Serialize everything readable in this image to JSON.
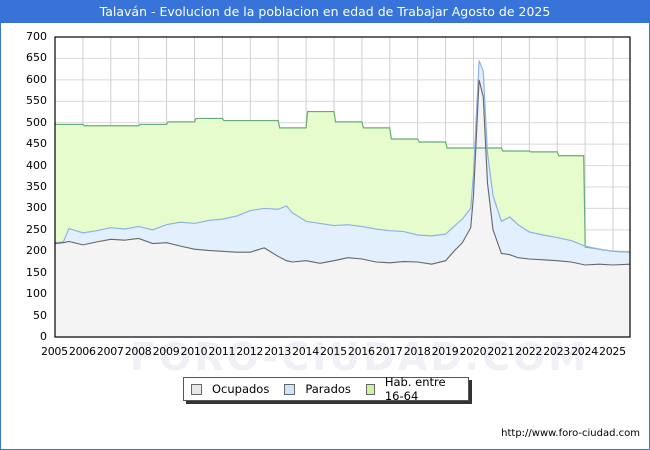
{
  "title": "Talaván - Evolucion de la poblacion en edad de Trabajar Agosto de 2025",
  "footer": "http://www.foro-ciudad.com",
  "watermark": "FORO-CIUDAD.COM",
  "legend": [
    {
      "label": "Ocupados",
      "color": "#e8e8e8"
    },
    {
      "label": "Parados",
      "color": "#cfe3fb"
    },
    {
      "label": "Hab. entre 16-64",
      "color": "#ccf5a0"
    }
  ],
  "y_ticks": [
    "700",
    "650",
    "600",
    "550",
    "500",
    "450",
    "400",
    "350",
    "300",
    "250",
    "200",
    "150",
    "100",
    "50",
    "0"
  ],
  "x_ticks": [
    "2005",
    "2006",
    "2007",
    "2008",
    "2009",
    "2010",
    "2011",
    "2012",
    "2013",
    "2014",
    "2015",
    "2016",
    "2017",
    "2018",
    "2019",
    "2020",
    "2021",
    "2022",
    "2023",
    "2024",
    "2025"
  ],
  "chart_data": {
    "type": "area",
    "title": "Talaván - Evolucion de la poblacion en edad de Trabajar Agosto de 2025",
    "xlabel": "",
    "ylabel": "",
    "ylim": [
      0,
      700
    ],
    "xlim": [
      2005,
      2025.6
    ],
    "grid": true,
    "legend_position": "bottom",
    "colors": {
      "ocupados_fill": "#f4f4f4",
      "ocupados_line": "#666666",
      "parados_fill": "#e2effd",
      "parados_line": "#8fb2e6",
      "hab_fill": "#e6fccc",
      "hab_line": "#6aaa7a"
    },
    "series": [
      {
        "name": "Hab. entre 16-64",
        "type": "step",
        "x": [
          2005,
          2006,
          2007,
          2008,
          2009,
          2010,
          2011,
          2012,
          2013,
          2014,
          2015,
          2016,
          2017,
          2018,
          2019,
          2020,
          2021,
          2022,
          2023,
          2023.95
        ],
        "values": [
          496,
          493,
          493,
          496,
          502,
          510,
          505,
          505,
          488,
          526,
          502,
          488,
          462,
          455,
          441,
          441,
          434,
          432,
          423,
          210
        ]
      },
      {
        "name": "Parados",
        "type": "line",
        "note": "top of blue band = Ocupados + Parados",
        "x": [
          2005,
          2005.3,
          2005.5,
          2006,
          2006.5,
          2007,
          2007.5,
          2008,
          2008.5,
          2009,
          2009.5,
          2010,
          2010.5,
          2011,
          2011.5,
          2012,
          2012.5,
          2013,
          2013.3,
          2013.5,
          2014,
          2014.5,
          2015,
          2015.5,
          2016,
          2016.5,
          2017,
          2017.5,
          2018,
          2018.5,
          2019,
          2019.3,
          2019.6,
          2019.9,
          2020,
          2020.2,
          2020.35,
          2020.5,
          2020.7,
          2021,
          2021.3,
          2021.6,
          2022,
          2022.5,
          2023,
          2023.5,
          2024,
          2024.5,
          2025,
          2025.6
        ],
        "values": [
          220,
          222,
          253,
          243,
          248,
          255,
          252,
          258,
          250,
          262,
          268,
          265,
          272,
          275,
          282,
          295,
          300,
          298,
          306,
          290,
          270,
          265,
          260,
          262,
          258,
          252,
          248,
          246,
          238,
          236,
          240,
          258,
          275,
          300,
          380,
          645,
          620,
          430,
          330,
          270,
          280,
          262,
          245,
          238,
          232,
          225,
          212,
          205,
          200,
          198
        ]
      },
      {
        "name": "Ocupados",
        "type": "line",
        "x": [
          2005,
          2005.3,
          2005.5,
          2006,
          2006.5,
          2007,
          2007.5,
          2008,
          2008.5,
          2009,
          2009.5,
          2010,
          2010.5,
          2011,
          2011.5,
          2012,
          2012.5,
          2013,
          2013.3,
          2013.5,
          2014,
          2014.5,
          2015,
          2015.5,
          2016,
          2016.5,
          2017,
          2017.5,
          2018,
          2018.5,
          2019,
          2019.3,
          2019.6,
          2019.9,
          2020,
          2020.2,
          2020.35,
          2020.5,
          2020.7,
          2021,
          2021.3,
          2021.6,
          2022,
          2022.5,
          2023,
          2023.5,
          2024,
          2024.5,
          2025,
          2025.6
        ],
        "values": [
          218,
          220,
          223,
          215,
          222,
          228,
          226,
          230,
          218,
          220,
          212,
          205,
          202,
          200,
          198,
          198,
          208,
          188,
          178,
          175,
          178,
          172,
          178,
          185,
          182,
          175,
          173,
          176,
          175,
          170,
          178,
          200,
          220,
          255,
          330,
          600,
          560,
          360,
          250,
          195,
          192,
          185,
          182,
          180,
          178,
          175,
          168,
          170,
          168,
          170
        ]
      }
    ]
  }
}
